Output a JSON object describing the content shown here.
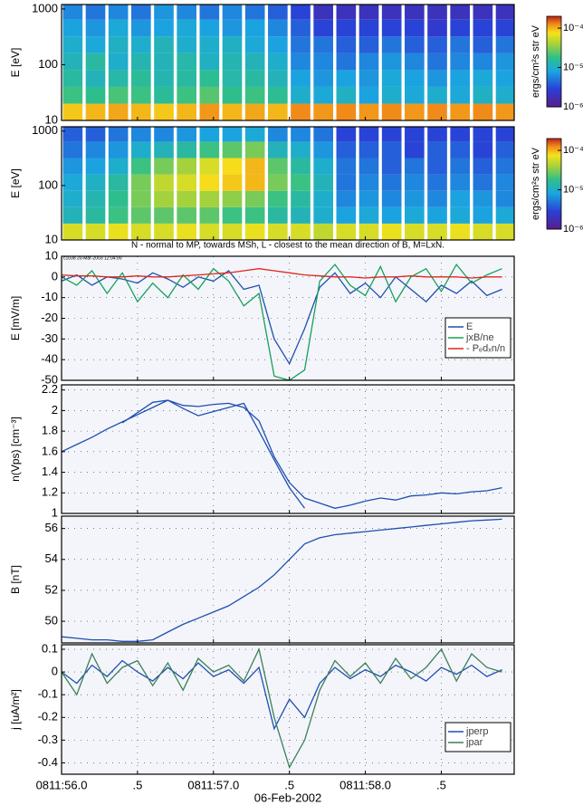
{
  "chart_data": [
    {
      "type": "heatmap",
      "ylabel": "E [eV]",
      "ylog": true,
      "ylim": [
        10,
        1200
      ],
      "yticks": [
        10,
        100,
        1000
      ],
      "xlim": [
        56,
        58.98
      ],
      "x": [
        56.0,
        56.15,
        56.3,
        56.45,
        56.6,
        56.75,
        56.9,
        57.05,
        57.2,
        57.35,
        57.5,
        57.65,
        57.8,
        57.95,
        58.1,
        58.25,
        58.4,
        58.55,
        58.7,
        58.85
      ],
      "ybins": [
        10,
        20,
        40,
        80,
        160,
        320,
        640,
        1200
      ],
      "z": [
        [
          9e-05,
          2e-05,
          1.5e-05,
          1.2e-05,
          1e-05,
          8e-06,
          6e-06
        ],
        [
          0.0001,
          1.8e-05,
          1.2e-05,
          1.5e-05,
          9e-06,
          7e-06,
          5e-06
        ],
        [
          0.00011,
          2.2e-05,
          1.4e-05,
          1e-05,
          1.1e-05,
          9e-06,
          6e-06
        ],
        [
          0.0001,
          2e-05,
          1.6e-05,
          1.3e-05,
          1e-05,
          7e-06,
          5e-06
        ],
        [
          9e-05,
          1.6e-05,
          1.3e-05,
          1.2e-05,
          1.2e-05,
          8e-06,
          7e-06
        ],
        [
          0.0001,
          2e-05,
          1.5e-05,
          1.4e-05,
          1e-05,
          9e-06,
          6e-06
        ],
        [
          0.00012,
          2.4e-05,
          1.7e-05,
          1.1e-05,
          1e-05,
          8e-06,
          5e-06
        ],
        [
          0.0001,
          1.8e-05,
          1.4e-05,
          1.3e-05,
          1.1e-05,
          7e-06,
          6e-06
        ],
        [
          0.00011,
          2e-05,
          1.5e-05,
          1.2e-05,
          9e-06,
          8e-06,
          5e-06
        ],
        [
          0.0001,
          1.7e-05,
          1.2e-05,
          1e-05,
          8e-06,
          6e-06,
          4e-06
        ],
        [
          0.00013,
          1e-05,
          8e-06,
          6e-06,
          5e-06,
          4e-06,
          3e-06
        ],
        [
          0.00012,
          9e-06,
          7e-06,
          6e-06,
          5e-06,
          3e-06,
          2e-06
        ],
        [
          0.00013,
          1.1e-05,
          8e-06,
          5e-06,
          4e-06,
          3e-06,
          2e-06
        ],
        [
          0.00012,
          8e-06,
          7e-06,
          6e-06,
          4e-06,
          3e-06,
          2e-06
        ],
        [
          0.00013,
          1e-05,
          9e-06,
          7e-06,
          5e-06,
          3e-06,
          2e-06
        ],
        [
          0.00012,
          9e-06,
          8e-06,
          6e-06,
          4e-06,
          3e-06,
          2e-06
        ],
        [
          0.00013,
          1e-05,
          7e-06,
          5e-06,
          4e-06,
          2.5e-06,
          2e-06
        ],
        [
          0.00012,
          9e-06,
          8e-06,
          6e-06,
          5e-06,
          3e-06,
          2e-06
        ],
        [
          0.00013,
          1.1e-05,
          9e-06,
          6e-06,
          4e-06,
          3e-06,
          2e-06
        ],
        [
          0.00012,
          1e-05,
          8e-06,
          7e-06,
          5e-06,
          3e-06,
          2e-06
        ]
      ],
      "clim": [
        1e-06,
        0.0002
      ],
      "cticks": [
        {
          "value": 0.0001,
          "label": "10⁻⁴"
        },
        {
          "value": 1e-05,
          "label": "10⁻⁵"
        },
        {
          "value": 1e-06,
          "label": "10⁻⁶"
        }
      ],
      "clabel": "ergs/cm²s str eV"
    },
    {
      "type": "heatmap",
      "ylabel": "E [eV]",
      "ylog": true,
      "ylim": [
        10,
        1200
      ],
      "yticks": [
        10,
        100,
        1000
      ],
      "xlim": [
        56,
        58.98
      ],
      "x": [
        56.0,
        56.15,
        56.3,
        56.45,
        56.6,
        56.75,
        56.9,
        57.05,
        57.2,
        57.35,
        57.5,
        57.65,
        57.8,
        57.95,
        58.1,
        58.25,
        58.4,
        58.55,
        58.7,
        58.85
      ],
      "ybins": [
        10,
        20,
        40,
        80,
        160,
        320,
        640,
        1200
      ],
      "z": [
        [
          6e-05,
          1.2e-05,
          1e-05,
          9e-06,
          7e-06,
          5e-06,
          4e-06
        ],
        [
          6e-05,
          1.5e-05,
          1.3e-05,
          1.1e-05,
          8e-06,
          6e-06,
          4e-06
        ],
        [
          7e-05,
          2e-05,
          1.8e-05,
          1.5e-05,
          1e-05,
          7e-06,
          5e-06
        ],
        [
          6e-05,
          2.5e-05,
          3e-05,
          3e-05,
          2e-05,
          1e-05,
          6e-06
        ],
        [
          6e-05,
          2.5e-05,
          4e-05,
          5e-05,
          3e-05,
          1.2e-05,
          6e-06
        ],
        [
          7e-05,
          2.5e-05,
          4e-05,
          6e-05,
          4e-05,
          1.5e-05,
          7e-06
        ],
        [
          6e-05,
          2.5e-05,
          4e-05,
          8e-05,
          6e-05,
          2e-05,
          8e-06
        ],
        [
          6e-05,
          2e-05,
          3.5e-05,
          9e-05,
          8e-05,
          2.5e-05,
          8e-06
        ],
        [
          7e-05,
          2e-05,
          3e-05,
          0.0001,
          0.0001,
          3e-05,
          9e-06
        ],
        [
          6e-05,
          1.5e-05,
          2e-05,
          3e-05,
          2.5e-05,
          1.2e-05,
          6e-06
        ],
        [
          6e-05,
          1.2e-05,
          1.5e-05,
          2e-05,
          1.5e-05,
          1e-05,
          6e-06
        ],
        [
          5e-05,
          1e-05,
          1e-05,
          1.2e-05,
          1e-05,
          7e-06,
          5e-06
        ],
        [
          6e-05,
          8e-06,
          6e-06,
          5e-06,
          5e-06,
          4e-06,
          3e-06
        ],
        [
          6e-05,
          9e-06,
          7e-06,
          6e-06,
          5e-06,
          4e-06,
          3e-06
        ],
        [
          7e-05,
          8e-06,
          6e-06,
          5e-06,
          4e-06,
          4e-06,
          3e-06
        ],
        [
          6e-05,
          9e-06,
          7e-06,
          6e-06,
          5e-06,
          3e-06,
          3e-06
        ],
        [
          6e-05,
          8e-06,
          6e-06,
          5e-06,
          4e-06,
          4e-06,
          3e-06
        ],
        [
          7e-05,
          9e-06,
          8e-06,
          6e-06,
          5e-06,
          4e-06,
          3e-06
        ],
        [
          6e-05,
          8e-06,
          7e-06,
          5e-06,
          4e-06,
          3e-06,
          3e-06
        ],
        [
          6e-05,
          9e-06,
          6e-06,
          6e-06,
          5e-06,
          4e-06,
          3e-06
        ]
      ],
      "clim": [
        1e-06,
        0.0002
      ],
      "cticks": [
        {
          "value": 0.0001,
          "label": "10⁻⁴"
        },
        {
          "value": 1e-05,
          "label": "10⁻⁵"
        },
        {
          "value": 1e-06,
          "label": "10⁻⁶"
        }
      ],
      "clabel": "ergs/cm²s str eV"
    },
    {
      "type": "line",
      "title": "N - normal to MP, towards MSh, L - closest to the mean direction of B, M=LxN.",
      "subtitle": "c1038  20-Mar-2003 12:04:00",
      "ylabel": "E [mV/m]",
      "ylim": [
        -50,
        10
      ],
      "yticks": [
        -50,
        -40,
        -30,
        -20,
        -10,
        0,
        10
      ],
      "grid": true,
      "legend": "lower right",
      "x": [
        56.0,
        56.1,
        56.2,
        56.3,
        56.4,
        56.5,
        56.6,
        56.7,
        56.8,
        56.9,
        57.0,
        57.1,
        57.2,
        57.3,
        57.4,
        57.5,
        57.6,
        57.7,
        57.8,
        57.9,
        58.0,
        58.1,
        58.2,
        58.3,
        58.4,
        58.5,
        58.6,
        58.7,
        58.8,
        58.9
      ],
      "series": [
        {
          "name": "E",
          "color": "#1f4fb0",
          "values": [
            -2,
            1,
            -4,
            0,
            -1,
            -3,
            2,
            -1,
            -5,
            0,
            -2,
            3,
            -6,
            -4,
            -30,
            -42,
            -25,
            -5,
            2,
            -8,
            -3,
            -10,
            0,
            -6,
            -12,
            -4,
            -8,
            -2,
            -9,
            -6
          ]
        },
        {
          "name": "jxB/ne",
          "color": "#16a05a",
          "values": [
            0,
            -4,
            3,
            -8,
            2,
            -12,
            -3,
            -10,
            1,
            -6,
            4,
            -2,
            -14,
            -8,
            -48,
            -50,
            -45,
            -2,
            6,
            -4,
            -9,
            5,
            -12,
            0,
            4,
            -7,
            6,
            -3,
            1,
            4
          ]
        },
        {
          "name": "- Pₑdₓn/n",
          "color": "#e0261e",
          "values": [
            1,
            0.5,
            0.5,
            0,
            0,
            0.5,
            0,
            0,
            0.5,
            1,
            1.5,
            2,
            3,
            4,
            3,
            2,
            1,
            0.5,
            0,
            0,
            -0.5,
            0,
            0,
            0.5,
            0,
            0,
            0,
            -0.5,
            0,
            0
          ]
        }
      ]
    },
    {
      "type": "line",
      "ylabel": "n(Vps) [cm⁻³]",
      "ylim": [
        1,
        2.25
      ],
      "yticks": [
        1,
        1.2,
        1.4,
        1.6,
        1.8,
        2,
        2.2
      ],
      "grid": true,
      "x": [
        56.0,
        56.1,
        56.2,
        56.3,
        56.4,
        56.5,
        56.6,
        56.7,
        56.8,
        56.9,
        57.0,
        57.1,
        57.2,
        57.3,
        57.4,
        57.5,
        57.6,
        57.7,
        57.8,
        57.9,
        58.0,
        58.1,
        58.2,
        58.3,
        58.4,
        58.5,
        58.6,
        58.7,
        58.8,
        58.9
      ],
      "series": [
        {
          "color": "#1f4fb0",
          "values": [
            null,
            null,
            null,
            null,
            1.88,
            1.98,
            2.08,
            2.1,
            2.05,
            2.04,
            2.06,
            2.07,
            2.03,
            1.9,
            1.55,
            1.3,
            1.15,
            1.1,
            1.05,
            1.08,
            1.12,
            1.15,
            1.13,
            1.17,
            1.18,
            1.2,
            1.19,
            1.21,
            1.22,
            1.25
          ]
        },
        {
          "color": "#1f4fb0",
          "values": [
            1.6,
            1.67,
            1.74,
            1.82,
            1.89,
            1.96,
            2.03,
            2.1,
            2.02,
            1.95,
            1.99,
            2.03,
            2.07,
            1.8,
            1.52,
            1.25,
            1.05,
            null,
            null,
            null,
            null,
            null,
            null,
            null,
            null,
            null,
            null,
            null,
            null,
            null
          ]
        }
      ]
    },
    {
      "type": "line",
      "ylabel": "B [nT]",
      "ylim": [
        48.6,
        56.8
      ],
      "yticks": [
        50,
        52,
        54,
        56
      ],
      "grid": true,
      "x": [
        56.0,
        56.1,
        56.2,
        56.3,
        56.4,
        56.5,
        56.6,
        56.7,
        56.8,
        56.9,
        57.0,
        57.1,
        57.2,
        57.3,
        57.4,
        57.5,
        57.6,
        57.7,
        57.8,
        57.9,
        58.0,
        58.1,
        58.2,
        58.3,
        58.4,
        58.5,
        58.6,
        58.7,
        58.8,
        58.9
      ],
      "series": [
        {
          "color": "#1f4fb0",
          "values": [
            49.0,
            48.9,
            48.8,
            48.8,
            48.7,
            48.7,
            48.8,
            49.3,
            49.8,
            50.2,
            50.6,
            51.0,
            51.6,
            52.2,
            53.0,
            54.0,
            55.0,
            55.4,
            55.6,
            55.7,
            55.8,
            55.9,
            56.0,
            56.1,
            56.2,
            56.3,
            56.4,
            56.5,
            56.55,
            56.6
          ]
        }
      ]
    },
    {
      "type": "line",
      "ylabel": "j [uA/m²]",
      "ylim": [
        -0.45,
        0.12
      ],
      "yticks": [
        -0.4,
        -0.3,
        -0.2,
        -0.1,
        0,
        0.1
      ],
      "grid": true,
      "legend": "lower right",
      "xlim": [
        56,
        58.98
      ],
      "xticks": [
        {
          "value": 56,
          "label": "0811:56.0"
        },
        {
          "value": 56.5,
          "label": ".5"
        },
        {
          "value": 57,
          "label": "0811:57.0"
        },
        {
          "value": 57.5,
          "label": ".5"
        },
        {
          "value": 58,
          "label": "0811:58.0"
        },
        {
          "value": 58.5,
          "label": ".5"
        }
      ],
      "xlabel": "06-Feb-2002",
      "x": [
        56.0,
        56.1,
        56.2,
        56.3,
        56.4,
        56.5,
        56.6,
        56.7,
        56.8,
        56.9,
        57.0,
        57.1,
        57.2,
        57.3,
        57.4,
        57.5,
        57.6,
        57.7,
        57.8,
        57.9,
        58.0,
        58.1,
        58.2,
        58.3,
        58.4,
        58.5,
        58.6,
        58.7,
        58.8,
        58.9
      ],
      "series": [
        {
          "name": "jperp",
          "color": "#1f4fb0",
          "values": [
            0,
            -0.05,
            0.03,
            -0.02,
            0.05,
            0,
            -0.04,
            0.02,
            -0.03,
            0.04,
            -0.02,
            0.01,
            -0.05,
            0.02,
            -0.25,
            -0.12,
            -0.2,
            -0.05,
            0.02,
            -0.03,
            0.01,
            -0.02,
            0.03,
            0,
            -0.04,
            0.02,
            -0.01,
            0.03,
            -0.02,
            0.01
          ]
        },
        {
          "name": "jpar",
          "color": "#3d7f5a",
          "values": [
            0,
            -0.1,
            0.08,
            -0.05,
            0.02,
            0.05,
            -0.06,
            0.04,
            -0.08,
            0.06,
            0,
            0.03,
            -0.04,
            0.1,
            -0.2,
            -0.42,
            -0.3,
            -0.08,
            0.05,
            -0.02,
            0.04,
            -0.05,
            0.06,
            -0.03,
            0.02,
            0.1,
            -0.04,
            0.08,
            0.02,
            0
          ]
        }
      ]
    }
  ]
}
